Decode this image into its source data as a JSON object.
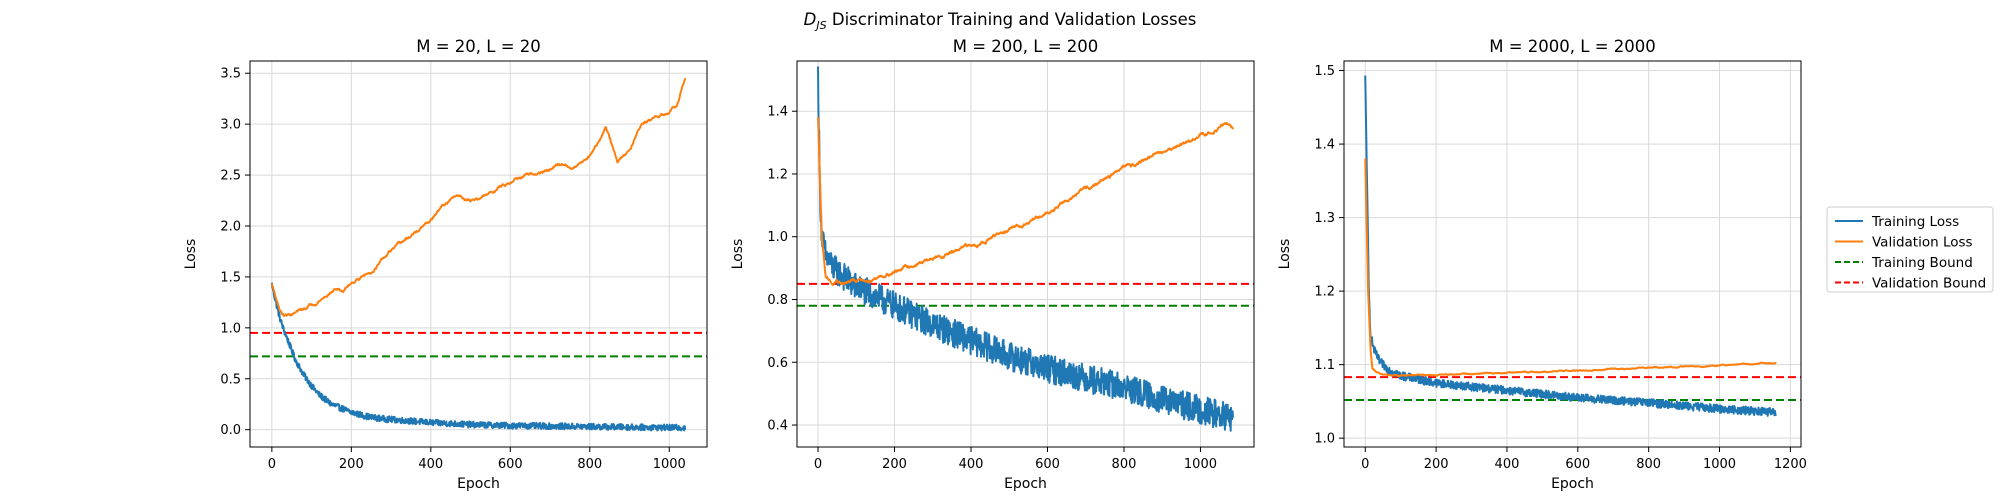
{
  "figure": {
    "suptitle_main": "D",
    "suptitle_sub": "JS",
    "suptitle_rest": " Discriminator Training and Validation Losses"
  },
  "legend": {
    "placement": "right",
    "entries": [
      {
        "label": "Training Loss",
        "color": "#1f77b4",
        "style": "solid"
      },
      {
        "label": "Validation Loss",
        "color": "#ff7f0e",
        "style": "solid"
      },
      {
        "label": "Training Bound",
        "color": "#008000",
        "style": "dashed"
      },
      {
        "label": "Validation Bound",
        "color": "#ff0000",
        "style": "dashed"
      }
    ]
  },
  "chart_data": [
    {
      "type": "line",
      "title": "M = 20, L = 20",
      "xlabel": "Epoch",
      "ylabel": "Loss",
      "xlim": [
        -55,
        1095
      ],
      "ylim": [
        -0.17,
        3.62
      ],
      "xticks": [
        0,
        200,
        400,
        600,
        800,
        1000
      ],
      "yticks": [
        0.0,
        0.5,
        1.0,
        1.5,
        2.0,
        2.5,
        3.0,
        3.5
      ],
      "ytick_labels": [
        "0.0",
        "0.5",
        "1.0",
        "1.5",
        "2.0",
        "2.5",
        "3.0",
        "3.5"
      ],
      "grid": true,
      "training_bound": 0.72,
      "validation_bound": 0.95,
      "epochs": 1040,
      "series": [
        {
          "name": "Training Loss",
          "color": "#1f77b4",
          "noise": 0.03,
          "points": [
            [
              0,
              1.43
            ],
            [
              10,
              1.25
            ],
            [
              20,
              1.1
            ],
            [
              30,
              0.98
            ],
            [
              40,
              0.88
            ],
            [
              50,
              0.78
            ],
            [
              60,
              0.68
            ],
            [
              80,
              0.54
            ],
            [
              100,
              0.43
            ],
            [
              120,
              0.34
            ],
            [
              150,
              0.25
            ],
            [
              200,
              0.17
            ],
            [
              250,
              0.12
            ],
            [
              300,
              0.1
            ],
            [
              400,
              0.07
            ],
            [
              500,
              0.05
            ],
            [
              600,
              0.04
            ],
            [
              800,
              0.03
            ],
            [
              1000,
              0.02
            ],
            [
              1040,
              0.02
            ]
          ]
        },
        {
          "name": "Validation Loss",
          "color": "#ff7f0e",
          "noise": 0.015,
          "points": [
            [
              0,
              1.43
            ],
            [
              10,
              1.3
            ],
            [
              20,
              1.18
            ],
            [
              30,
              1.12
            ],
            [
              50,
              1.13
            ],
            [
              80,
              1.18
            ],
            [
              100,
              1.23
            ],
            [
              130,
              1.3
            ],
            [
              160,
              1.38
            ],
            [
              180,
              1.36
            ],
            [
              200,
              1.45
            ],
            [
              250,
              1.55
            ],
            [
              300,
              1.75
            ],
            [
              350,
              1.9
            ],
            [
              400,
              2.05
            ],
            [
              430,
              2.2
            ],
            [
              470,
              2.3
            ],
            [
              500,
              2.25
            ],
            [
              540,
              2.3
            ],
            [
              580,
              2.4
            ],
            [
              620,
              2.48
            ],
            [
              660,
              2.5
            ],
            [
              700,
              2.55
            ],
            [
              720,
              2.6
            ],
            [
              760,
              2.58
            ],
            [
              800,
              2.7
            ],
            [
              840,
              2.97
            ],
            [
              870,
              2.63
            ],
            [
              900,
              2.75
            ],
            [
              930,
              3.0
            ],
            [
              960,
              3.05
            ],
            [
              980,
              3.08
            ],
            [
              1000,
              3.1
            ],
            [
              1020,
              3.2
            ],
            [
              1040,
              3.46
            ]
          ]
        }
      ]
    },
    {
      "type": "line",
      "title": "M = 200, L = 200",
      "xlabel": "Epoch",
      "ylabel": "Loss",
      "xlim": [
        -55,
        1140
      ],
      "ylim": [
        0.33,
        1.56
      ],
      "xticks": [
        0,
        200,
        400,
        600,
        800,
        1000
      ],
      "yticks": [
        0.4,
        0.6,
        0.8,
        1.0,
        1.2,
        1.4
      ],
      "ytick_labels": [
        "0.4",
        "0.6",
        "0.8",
        "1.0",
        "1.2",
        "1.4"
      ],
      "grid": true,
      "training_bound": 0.78,
      "validation_bound": 0.85,
      "epochs": 1085,
      "series": [
        {
          "name": "Training Loss",
          "color": "#1f77b4",
          "noise": 0.045,
          "points": [
            [
              0,
              1.52
            ],
            [
              5,
              1.15
            ],
            [
              10,
              1.0
            ],
            [
              20,
              0.94
            ],
            [
              40,
              0.9
            ],
            [
              60,
              0.88
            ],
            [
              100,
              0.84
            ],
            [
              200,
              0.78
            ],
            [
              300,
              0.72
            ],
            [
              400,
              0.67
            ],
            [
              500,
              0.62
            ],
            [
              600,
              0.58
            ],
            [
              700,
              0.55
            ],
            [
              800,
              0.52
            ],
            [
              900,
              0.48
            ],
            [
              1000,
              0.45
            ],
            [
              1085,
              0.42
            ]
          ]
        },
        {
          "name": "Validation Loss",
          "color": "#ff7f0e",
          "noise": 0.006,
          "points": [
            [
              0,
              1.38
            ],
            [
              10,
              1.0
            ],
            [
              20,
              0.88
            ],
            [
              40,
              0.85
            ],
            [
              60,
              0.85
            ],
            [
              100,
              0.86
            ],
            [
              150,
              0.87
            ],
            [
              200,
              0.89
            ],
            [
              300,
              0.93
            ],
            [
              400,
              0.97
            ],
            [
              500,
              1.02
            ],
            [
              600,
              1.08
            ],
            [
              700,
              1.15
            ],
            [
              800,
              1.22
            ],
            [
              900,
              1.27
            ],
            [
              1000,
              1.32
            ],
            [
              1070,
              1.36
            ],
            [
              1085,
              1.34
            ]
          ]
        }
      ]
    },
    {
      "type": "line",
      "title": "M = 2000, L = 2000",
      "xlabel": "Epoch",
      "ylabel": "Loss",
      "xlim": [
        -60,
        1230
      ],
      "ylim": [
        0.988,
        1.513
      ],
      "xticks": [
        0,
        200,
        400,
        600,
        800,
        1000,
        1200
      ],
      "yticks": [
        1.0,
        1.1,
        1.2,
        1.3,
        1.4,
        1.5
      ],
      "ytick_labels": [
        "1.0",
        "1.1",
        "1.2",
        "1.3",
        "1.4",
        "1.5"
      ],
      "grid": true,
      "training_bound": 1.052,
      "validation_bound": 1.083,
      "epochs": 1160,
      "series": [
        {
          "name": "Training Loss",
          "color": "#1f77b4",
          "noise": 0.0055,
          "points": [
            [
              0,
              1.49
            ],
            [
              5,
              1.35
            ],
            [
              10,
              1.2
            ],
            [
              15,
              1.14
            ],
            [
              25,
              1.12
            ],
            [
              40,
              1.105
            ],
            [
              60,
              1.095
            ],
            [
              100,
              1.085
            ],
            [
              200,
              1.075
            ],
            [
              300,
              1.07
            ],
            [
              400,
              1.065
            ],
            [
              600,
              1.055
            ],
            [
              800,
              1.048
            ],
            [
              1000,
              1.04
            ],
            [
              1160,
              1.035
            ]
          ]
        },
        {
          "name": "Validation Loss",
          "color": "#ff7f0e",
          "noise": 0.0008,
          "points": [
            [
              0,
              1.38
            ],
            [
              8,
              1.2
            ],
            [
              15,
              1.12
            ],
            [
              20,
              1.095
            ],
            [
              30,
              1.09
            ],
            [
              50,
              1.086
            ],
            [
              100,
              1.085
            ],
            [
              200,
              1.086
            ],
            [
              400,
              1.089
            ],
            [
              600,
              1.092
            ],
            [
              800,
              1.096
            ],
            [
              1000,
              1.099
            ],
            [
              1160,
              1.102
            ]
          ]
        }
      ]
    }
  ]
}
